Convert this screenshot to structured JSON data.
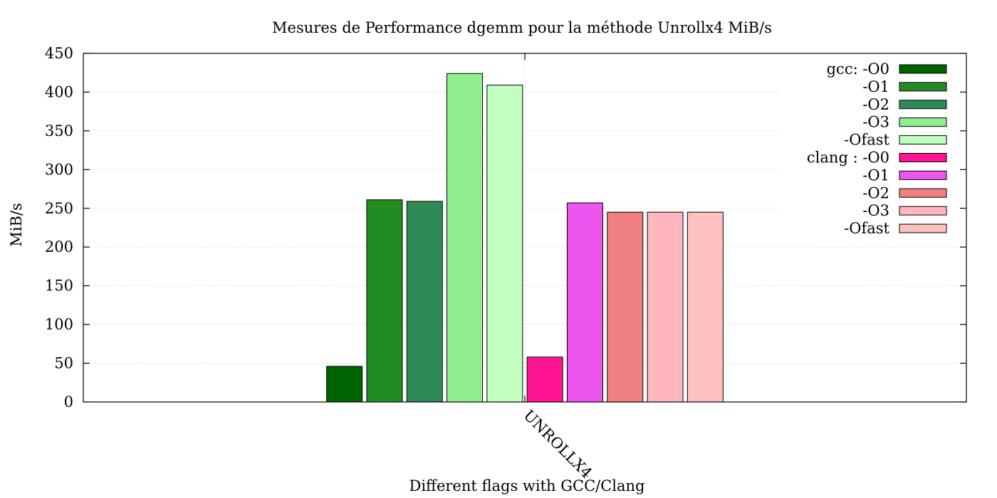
{
  "chart_data": {
    "type": "bar",
    "title": "Mesures de Performance dgemm pour la méthode Unrollx4 MiB/s",
    "xlabel": "Different flags with GCC/Clang",
    "ylabel": "MiB/s",
    "ylim": [
      0,
      450
    ],
    "yticks": [
      0,
      50,
      100,
      150,
      200,
      250,
      300,
      350,
      400,
      450
    ],
    "categories": [
      "UNROLLX4"
    ],
    "grid": true,
    "legend_position": "top-right",
    "series": [
      {
        "name": "gcc: -O0",
        "values": [
          46
        ],
        "color": "#006400"
      },
      {
        "name": "-O1",
        "values": [
          261
        ],
        "color": "#228b22"
      },
      {
        "name": "-O2",
        "values": [
          259
        ],
        "color": "#2e8b57"
      },
      {
        "name": "-O3",
        "values": [
          424
        ],
        "color": "#90ee90"
      },
      {
        "name": "-Ofast",
        "values": [
          409
        ],
        "color": "#c0ffc0"
      },
      {
        "name": "clang : -O0",
        "values": [
          58
        ],
        "color": "#ff1493"
      },
      {
        "name": "-O1",
        "values": [
          257
        ],
        "color": "#ee55ee"
      },
      {
        "name": "-O2",
        "values": [
          245
        ],
        "color": "#f08080"
      },
      {
        "name": "-O3",
        "values": [
          245
        ],
        "color": "#ffb6c1"
      },
      {
        "name": "-Ofast",
        "values": [
          245
        ],
        "color": "#ffc0c0"
      }
    ]
  }
}
